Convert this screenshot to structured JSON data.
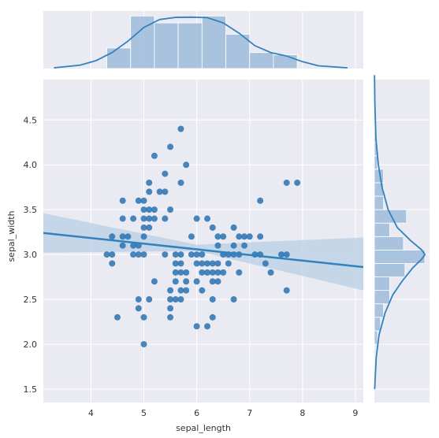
{
  "chart_data": {
    "type": "scatter",
    "title": "",
    "xlabel": "sepal_length",
    "ylabel": "sepal_width",
    "xlim": [
      3.1,
      9.15
    ],
    "ylim": [
      1.35,
      4.95
    ],
    "xticks": [
      4,
      5,
      6,
      7,
      8,
      9
    ],
    "yticks": [
      1.5,
      2.0,
      2.5,
      3.0,
      3.5,
      4.0,
      4.5
    ],
    "grid": true,
    "colors": {
      "background": "#eaeaf2",
      "grid": "#ffffff",
      "marker": "#2a72b0",
      "line": "#3182bd",
      "band": "#b8cfe6",
      "hist": "#9ebcda",
      "kde": "#3182bd"
    },
    "points": [
      [
        4.3,
        3.0
      ],
      [
        4.4,
        2.9
      ],
      [
        4.4,
        3.0
      ],
      [
        4.4,
        3.2
      ],
      [
        4.5,
        2.3
      ],
      [
        4.6,
        3.1
      ],
      [
        4.6,
        3.2
      ],
      [
        4.6,
        3.4
      ],
      [
        4.6,
        3.6
      ],
      [
        4.7,
        3.2
      ],
      [
        4.8,
        3.0
      ],
      [
        4.8,
        3.1
      ],
      [
        4.8,
        3.4
      ],
      [
        4.9,
        2.4
      ],
      [
        4.9,
        2.5
      ],
      [
        4.9,
        3.0
      ],
      [
        4.9,
        3.1
      ],
      [
        4.9,
        3.6
      ],
      [
        5.0,
        2.0
      ],
      [
        5.0,
        2.3
      ],
      [
        5.0,
        3.0
      ],
      [
        5.0,
        3.2
      ],
      [
        5.0,
        3.3
      ],
      [
        5.0,
        3.4
      ],
      [
        5.0,
        3.5
      ],
      [
        5.0,
        3.6
      ],
      [
        5.1,
        2.5
      ],
      [
        5.1,
        3.3
      ],
      [
        5.1,
        3.4
      ],
      [
        5.1,
        3.5
      ],
      [
        5.1,
        3.7
      ],
      [
        5.1,
        3.8
      ],
      [
        5.2,
        2.7
      ],
      [
        5.2,
        3.4
      ],
      [
        5.2,
        3.5
      ],
      [
        5.2,
        4.1
      ],
      [
        5.3,
        3.7
      ],
      [
        5.4,
        3.0
      ],
      [
        5.4,
        3.4
      ],
      [
        5.4,
        3.7
      ],
      [
        5.4,
        3.9
      ],
      [
        5.5,
        2.3
      ],
      [
        5.5,
        2.4
      ],
      [
        5.5,
        2.5
      ],
      [
        5.5,
        2.6
      ],
      [
        5.5,
        3.5
      ],
      [
        5.5,
        4.2
      ],
      [
        5.6,
        2.5
      ],
      [
        5.6,
        2.7
      ],
      [
        5.6,
        2.8
      ],
      [
        5.6,
        2.9
      ],
      [
        5.6,
        3.0
      ],
      [
        5.7,
        2.5
      ],
      [
        5.7,
        2.6
      ],
      [
        5.7,
        2.8
      ],
      [
        5.7,
        2.9
      ],
      [
        5.7,
        3.0
      ],
      [
        5.7,
        3.8
      ],
      [
        5.7,
        4.4
      ],
      [
        5.8,
        2.6
      ],
      [
        5.8,
        2.7
      ],
      [
        5.8,
        2.8
      ],
      [
        5.8,
        4.0
      ],
      [
        5.9,
        3.0
      ],
      [
        5.9,
        3.2
      ],
      [
        6.0,
        2.2
      ],
      [
        6.0,
        2.7
      ],
      [
        6.0,
        2.9
      ],
      [
        6.0,
        3.0
      ],
      [
        6.0,
        3.4
      ],
      [
        6.1,
        2.6
      ],
      [
        6.1,
        2.8
      ],
      [
        6.1,
        2.9
      ],
      [
        6.1,
        3.0
      ],
      [
        6.2,
        2.2
      ],
      [
        6.2,
        2.8
      ],
      [
        6.2,
        2.9
      ],
      [
        6.2,
        3.4
      ],
      [
        6.3,
        2.3
      ],
      [
        6.3,
        2.5
      ],
      [
        6.3,
        2.7
      ],
      [
        6.3,
        2.8
      ],
      [
        6.3,
        2.9
      ],
      [
        6.3,
        3.3
      ],
      [
        6.4,
        2.7
      ],
      [
        6.4,
        2.8
      ],
      [
        6.4,
        2.9
      ],
      [
        6.4,
        3.1
      ],
      [
        6.4,
        3.2
      ],
      [
        6.5,
        2.8
      ],
      [
        6.5,
        3.0
      ],
      [
        6.5,
        3.2
      ],
      [
        6.6,
        2.9
      ],
      [
        6.6,
        3.0
      ],
      [
        6.7,
        2.5
      ],
      [
        6.7,
        3.0
      ],
      [
        6.7,
        3.1
      ],
      [
        6.7,
        3.3
      ],
      [
        6.8,
        2.8
      ],
      [
        6.8,
        3.0
      ],
      [
        6.8,
        3.2
      ],
      [
        6.9,
        3.1
      ],
      [
        6.9,
        3.2
      ],
      [
        7.0,
        3.2
      ],
      [
        7.1,
        3.0
      ],
      [
        7.2,
        3.0
      ],
      [
        7.2,
        3.2
      ],
      [
        7.2,
        3.6
      ],
      [
        7.3,
        2.9
      ],
      [
        7.4,
        2.8
      ],
      [
        7.6,
        3.0
      ],
      [
        7.7,
        2.6
      ],
      [
        7.7,
        3.0
      ],
      [
        7.7,
        3.8
      ],
      [
        7.9,
        3.8
      ]
    ],
    "regression": {
      "x": [
        3.1,
        9.15
      ],
      "y": [
        3.24,
        2.86
      ]
    },
    "confidence_band": {
      "x": [
        3.1,
        6.0,
        9.15
      ],
      "upper": [
        3.46,
        3.11,
        3.19
      ],
      "lower": [
        3.02,
        3.04,
        2.6
      ]
    },
    "marginal_x": {
      "bins": [
        [
          4.3,
          4.75
        ],
        [
          4.75,
          5.2
        ],
        [
          5.2,
          5.65
        ],
        [
          5.65,
          6.1
        ],
        [
          6.1,
          6.55
        ],
        [
          6.55,
          7.0
        ],
        [
          7.0,
          7.45
        ],
        [
          7.45,
          7.9
        ]
      ],
      "counts": [
        9,
        23,
        20,
        20,
        23,
        15,
        7,
        6
      ],
      "kde_x": [
        3.3,
        3.8,
        4.1,
        4.4,
        4.7,
        5.0,
        5.3,
        5.6,
        5.9,
        6.2,
        6.5,
        6.8,
        7.1,
        7.4,
        7.7,
        8.0,
        8.3,
        8.85
      ],
      "kde_y": [
        0.3,
        1.5,
        3.5,
        7,
        12,
        18,
        21.5,
        22.4,
        22.5,
        22.3,
        20,
        15.5,
        10,
        7,
        5.5,
        3,
        1.2,
        0.3
      ]
    },
    "marginal_y": {
      "bins": [
        [
          2.0,
          2.15
        ],
        [
          2.15,
          2.3
        ],
        [
          2.3,
          2.45
        ],
        [
          2.45,
          2.6
        ],
        [
          2.6,
          2.75
        ],
        [
          2.75,
          2.9
        ],
        [
          2.9,
          3.05
        ],
        [
          3.05,
          3.2
        ],
        [
          3.2,
          3.35
        ],
        [
          3.35,
          3.5
        ],
        [
          3.5,
          3.65
        ],
        [
          3.65,
          3.8
        ],
        [
          3.8,
          3.95
        ],
        [
          3.95,
          4.1
        ],
        [
          4.1,
          4.25
        ],
        [
          4.25,
          4.4
        ]
      ],
      "counts": [
        2,
        4,
        6,
        10,
        10,
        20,
        33,
        19,
        10,
        21,
        6,
        6,
        6,
        2,
        2,
        1
      ],
      "kde_y": [
        1.5,
        1.85,
        2.1,
        2.35,
        2.55,
        2.7,
        2.85,
        2.95,
        3.0,
        3.05,
        3.15,
        3.3,
        3.5,
        3.75,
        4.0,
        4.3,
        4.7,
        5.0
      ],
      "kde_x": [
        0.2,
        1.2,
        3,
        7,
        12,
        18,
        25,
        31,
        33,
        31,
        24,
        15,
        9,
        5,
        2.6,
        1,
        0.3,
        0.1
      ]
    }
  }
}
